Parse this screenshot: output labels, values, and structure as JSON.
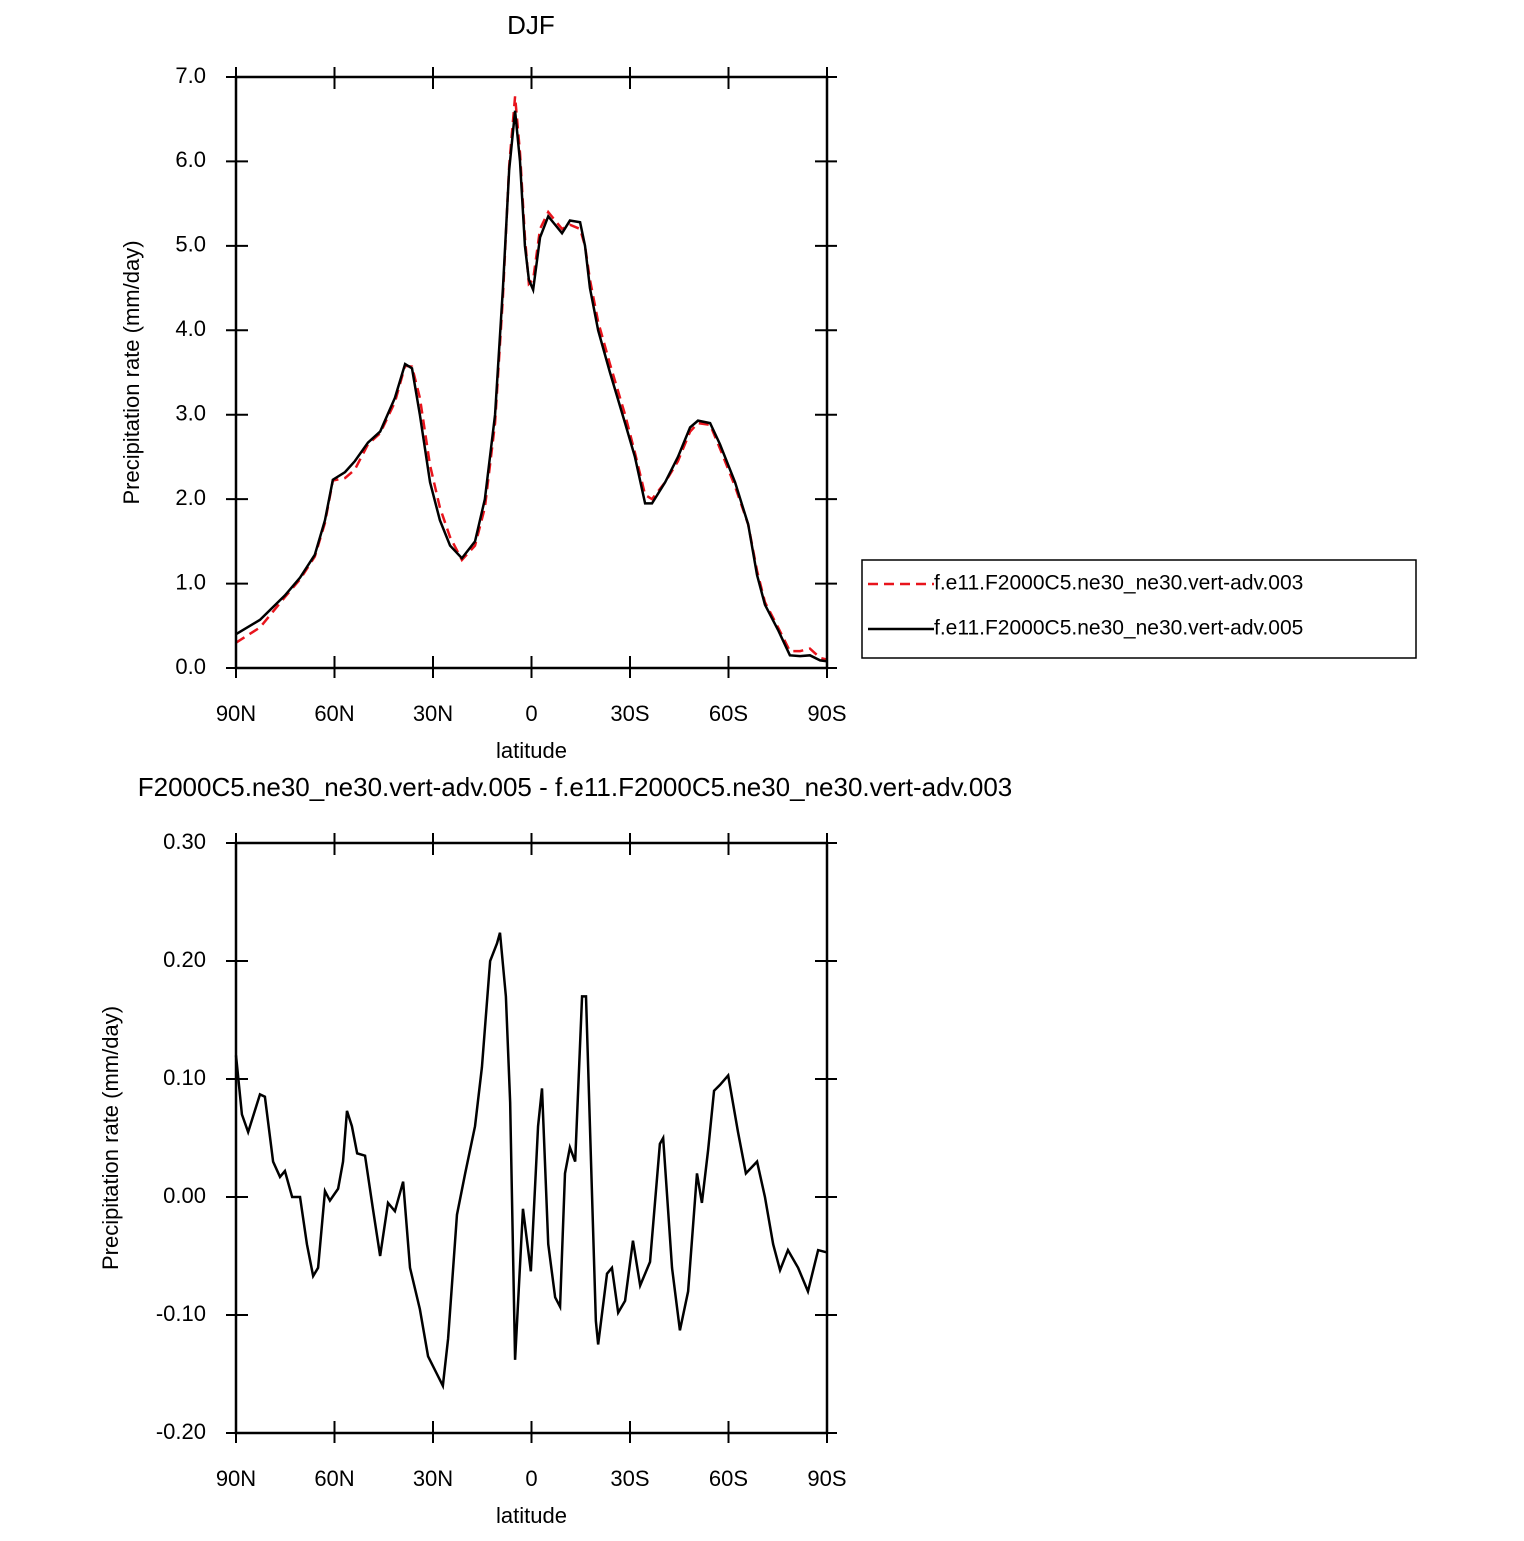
{
  "chart_data": [
    {
      "type": "line",
      "title": "DJF",
      "x_label": "latitude",
      "y_label": "Precipitation rate (mm/day)",
      "x": [
        90,
        82.7,
        75.1,
        70.5,
        66,
        62.9,
        60.5,
        56.8,
        53.8,
        49.8,
        46.1,
        41.6,
        38.5,
        36.4,
        34,
        30.9,
        27.9,
        24.8,
        21.2,
        17.2,
        14.2,
        11.1,
        8.7,
        6.8,
        5,
        3.5,
        2,
        0.8,
        -0.5,
        -2.6,
        -5.1,
        -7.2,
        -9.3,
        -11.7,
        -14.8,
        -16.3,
        -17.8,
        -20.3,
        -23.9,
        -28.5,
        -31.5,
        -34.6,
        -36.7,
        -40.7,
        -44.6,
        -48.3,
        -50.7,
        -54.4,
        -57.4,
        -62,
        -66,
        -68.7,
        -71.1,
        -75.1,
        -78.7,
        -81.8,
        -84.8,
        -87.9,
        -90
      ],
      "series": [
        {
          "name": "f.e11.F2000C5.ne30_ne30.vert-adv.003",
          "color": "#e8141c",
          "dashed": true,
          "values": [
            0.3,
            0.48,
            0.84,
            1.05,
            1.32,
            1.72,
            2.22,
            2.25,
            2.35,
            2.65,
            2.78,
            3.15,
            3.58,
            3.57,
            3.2,
            2.4,
            1.9,
            1.55,
            1.28,
            1.45,
            1.9,
            2.9,
            4.4,
            5.95,
            6.77,
            6.1,
            5.1,
            4.55,
            4.6,
            5.2,
            5.4,
            5.3,
            5.2,
            5.25,
            5.2,
            5.0,
            4.6,
            4.1,
            3.6,
            3.0,
            2.55,
            2.05,
            2.0,
            2.2,
            2.45,
            2.8,
            2.9,
            2.88,
            2.6,
            2.15,
            1.7,
            1.15,
            0.78,
            0.48,
            0.2,
            0.2,
            0.23,
            0.12,
            0.1
          ]
        },
        {
          "name": "f.e11.F2000C5.ne30_ne30.vert-adv.005",
          "color": "#000000",
          "dashed": false,
          "values": [
            0.4,
            0.57,
            0.86,
            1.07,
            1.34,
            1.75,
            2.23,
            2.32,
            2.45,
            2.67,
            2.8,
            3.2,
            3.6,
            3.55,
            3.0,
            2.2,
            1.75,
            1.45,
            1.3,
            1.5,
            2.0,
            3.0,
            4.5,
            5.9,
            6.6,
            6.0,
            5.0,
            4.6,
            4.48,
            5.1,
            5.35,
            5.25,
            5.15,
            5.3,
            5.28,
            5.0,
            4.5,
            4.0,
            3.5,
            2.9,
            2.5,
            1.95,
            1.95,
            2.2,
            2.5,
            2.85,
            2.93,
            2.9,
            2.65,
            2.2,
            1.7,
            1.1,
            0.75,
            0.45,
            0.15,
            0.14,
            0.15,
            0.09,
            0.08
          ]
        }
      ],
      "xlim": [
        90,
        -90
      ],
      "xticks": [
        {
          "value": 90,
          "label": "90N"
        },
        {
          "value": 60,
          "label": "60N"
        },
        {
          "value": 30,
          "label": "30N"
        },
        0,
        {
          "value": -30,
          "label": "30S"
        },
        {
          "value": -60,
          "label": "60S"
        },
        {
          "value": -90,
          "label": "90S"
        }
      ],
      "ylim": [
        0,
        7
      ],
      "yticks": [
        {
          "value": 0,
          "label": "0.0"
        },
        {
          "value": 1,
          "label": "1.0"
        },
        {
          "value": 2,
          "label": "2.0"
        },
        {
          "value": 3,
          "label": "3.0"
        },
        {
          "value": 4,
          "label": "4.0"
        },
        {
          "value": 5,
          "label": "5.0"
        },
        {
          "value": 6,
          "label": "6.0"
        },
        {
          "value": 7,
          "label": "7.0"
        }
      ],
      "legend": "right"
    },
    {
      "type": "line",
      "title": "F2000C5.ne30_ne30.vert-adv.005 - f.e11.F2000C5.ne30_ne30.vert-adv.003",
      "x_label": "latitude",
      "y_label": "Precipitation rate (mm/day)",
      "x": [
        90,
        88.2,
        86.3,
        82.7,
        81.2,
        78.7,
        76.6,
        75.1,
        72.9,
        70.5,
        68.4,
        66.5,
        65,
        62.9,
        61.4,
        58.9,
        57.4,
        56.2,
        54.7,
        53.1,
        50.7,
        48.3,
        46.1,
        43.7,
        41.6,
        39.1,
        37,
        34,
        31.5,
        28.8,
        27,
        25.4,
        22.7,
        20.2,
        17.2,
        15.1,
        12.6,
        10.5,
        9.6,
        7.8,
        6.5,
        5,
        2.6,
        0.2,
        -2,
        -3.2,
        -5.1,
        -7.2,
        -8.7,
        -10.2,
        -11.7,
        -13.3,
        -15.4,
        -16.6,
        -19.6,
        -20.3,
        -23,
        -24.5,
        -26.4,
        -28.5,
        -30.9,
        -33.1,
        -36.1,
        -39.1,
        -40.1,
        -42.8,
        -45.2,
        -47.7,
        -50.4,
        -51.9,
        -53.8,
        -55.6,
        -57.4,
        -59.9,
        -62.9,
        -65.3,
        -68.7,
        -71.1,
        -73.6,
        -75.7,
        -78.1,
        -81.2,
        -84.2,
        -87.3,
        -90
      ],
      "series": [
        {
          "color": "#000000",
          "dashed": false,
          "values": [
            0.12,
            0.07,
            0.055,
            0.087,
            0.085,
            0.03,
            0.017,
            0.022,
            0,
            0,
            -0.04,
            -0.067,
            -0.06,
            0.005,
            -0.003,
            0.007,
            0.03,
            0.073,
            0.06,
            0.037,
            0.035,
            -0.01,
            -0.05,
            -0.005,
            -0.012,
            0.013,
            -0.06,
            -0.095,
            -0.135,
            -0.15,
            -0.16,
            -0.12,
            -0.015,
            0.02,
            0.06,
            0.11,
            0.2,
            0.215,
            0.224,
            0.17,
            0.08,
            -0.138,
            -0.01,
            -0.063,
            0.06,
            0.092,
            -0.04,
            -0.085,
            -0.093,
            0.02,
            0.042,
            0.03,
            0.17,
            0.17,
            -0.105,
            -0.125,
            -0.065,
            -0.06,
            -0.098,
            -0.088,
            -0.037,
            -0.075,
            -0.055,
            0.045,
            0.05,
            -0.06,
            -0.113,
            -0.08,
            0.02,
            -0.005,
            0.04,
            0.09,
            0.095,
            0.103,
            0.055,
            0.02,
            0.03,
            0,
            -0.04,
            -0.062,
            -0.045,
            -0.06,
            -0.08,
            -0.045,
            -0.047
          ]
        }
      ],
      "xlim": [
        90,
        -90
      ],
      "xticks": [
        {
          "value": 90,
          "label": "90N"
        },
        {
          "value": 60,
          "label": "60N"
        },
        {
          "value": 30,
          "label": "30N"
        },
        0,
        {
          "value": -30,
          "label": "30S"
        },
        {
          "value": -60,
          "label": "60S"
        },
        {
          "value": -90,
          "label": "90S"
        }
      ],
      "ylim": [
        -0.2,
        0.3
      ],
      "yticks": [
        {
          "value": -0.2,
          "label": "-0.20"
        },
        {
          "value": -0.1,
          "label": "-0.10"
        },
        {
          "value": 0,
          "label": "0.00"
        },
        {
          "value": 0.1,
          "label": "0.10"
        },
        {
          "value": 0.2,
          "label": "0.20"
        },
        {
          "value": 0.3,
          "label": "0.30"
        }
      ]
    }
  ]
}
